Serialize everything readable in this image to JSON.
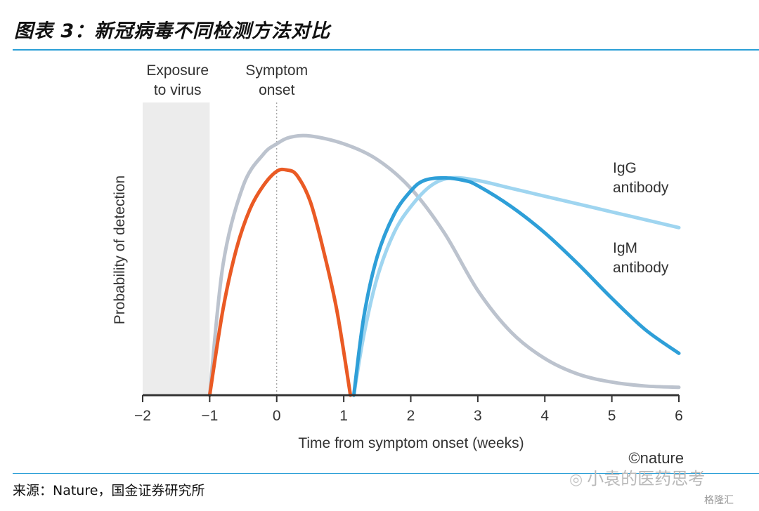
{
  "header": {
    "title": "图表 3：新冠病毒不同检测方法对比"
  },
  "footer": {
    "source": "来源：Nature，国金证券研究所",
    "watermark": "小袁的医药思考",
    "watermark_small": "格隆汇"
  },
  "chart_data": {
    "type": "line",
    "xlabel": "Time from symptom onset (weeks)",
    "ylabel": "Probability of detection",
    "xlim": [
      -2,
      6
    ],
    "ylim": [
      0,
      1
    ],
    "x_ticks": [
      "−2",
      "−1",
      "0",
      "1",
      "2",
      "3",
      "4",
      "5",
      "6"
    ],
    "x_tick_values": [
      -2,
      -1,
      0,
      1,
      2,
      3,
      4,
      5,
      6
    ],
    "shaded_region": {
      "x": [
        -2,
        -1
      ],
      "label_line1": "Exposure",
      "label_line2": "to virus"
    },
    "vline": {
      "x": 0,
      "label_line1": "Symptom",
      "label_line2": "onset"
    },
    "credit": "©nature",
    "colors": {
      "gray": "#bcc3ce",
      "orange": "#ea5a24",
      "blue": "#2e9fd8",
      "light_blue": "#9fd5f0",
      "shade": "#ececec"
    },
    "series": [
      {
        "key": "gray",
        "x": [
          -1,
          -0.8,
          -0.5,
          -0.2,
          0,
          0.2,
          0.5,
          1,
          1.5,
          2,
          2.5,
          3,
          3.5,
          4,
          4.5,
          5,
          5.5,
          6
        ],
        "y": [
          0,
          0.5,
          0.8,
          0.92,
          0.96,
          0.985,
          0.99,
          0.96,
          0.9,
          0.79,
          0.62,
          0.4,
          0.24,
          0.14,
          0.08,
          0.05,
          0.035,
          0.03
        ]
      },
      {
        "key": "orange",
        "x": [
          -1,
          -0.8,
          -0.6,
          -0.4,
          -0.2,
          0,
          0.15,
          0.3,
          0.5,
          0.7,
          0.9,
          1.1
        ],
        "y": [
          0,
          0.33,
          0.56,
          0.71,
          0.8,
          0.855,
          0.86,
          0.84,
          0.74,
          0.55,
          0.32,
          0
        ]
      },
      {
        "key": "light_blue",
        "name_line1": "IgG",
        "name_line2": "antibody",
        "x": [
          1.15,
          1.3,
          1.5,
          1.75,
          2,
          2.3,
          2.6,
          3,
          3.5,
          4,
          4.5,
          5,
          5.5,
          6
        ],
        "y": [
          0,
          0.23,
          0.45,
          0.62,
          0.72,
          0.8,
          0.83,
          0.82,
          0.79,
          0.76,
          0.73,
          0.7,
          0.67,
          0.64
        ]
      },
      {
        "key": "blue",
        "name_line1": "IgM",
        "name_line2": "antibody",
        "x": [
          1.15,
          1.3,
          1.5,
          1.75,
          2,
          2.2,
          2.5,
          2.8,
          3,
          3.5,
          4,
          4.5,
          5,
          5.5,
          6
        ],
        "y": [
          0,
          0.3,
          0.53,
          0.69,
          0.78,
          0.82,
          0.83,
          0.82,
          0.8,
          0.72,
          0.62,
          0.5,
          0.37,
          0.25,
          0.16
        ]
      }
    ]
  }
}
